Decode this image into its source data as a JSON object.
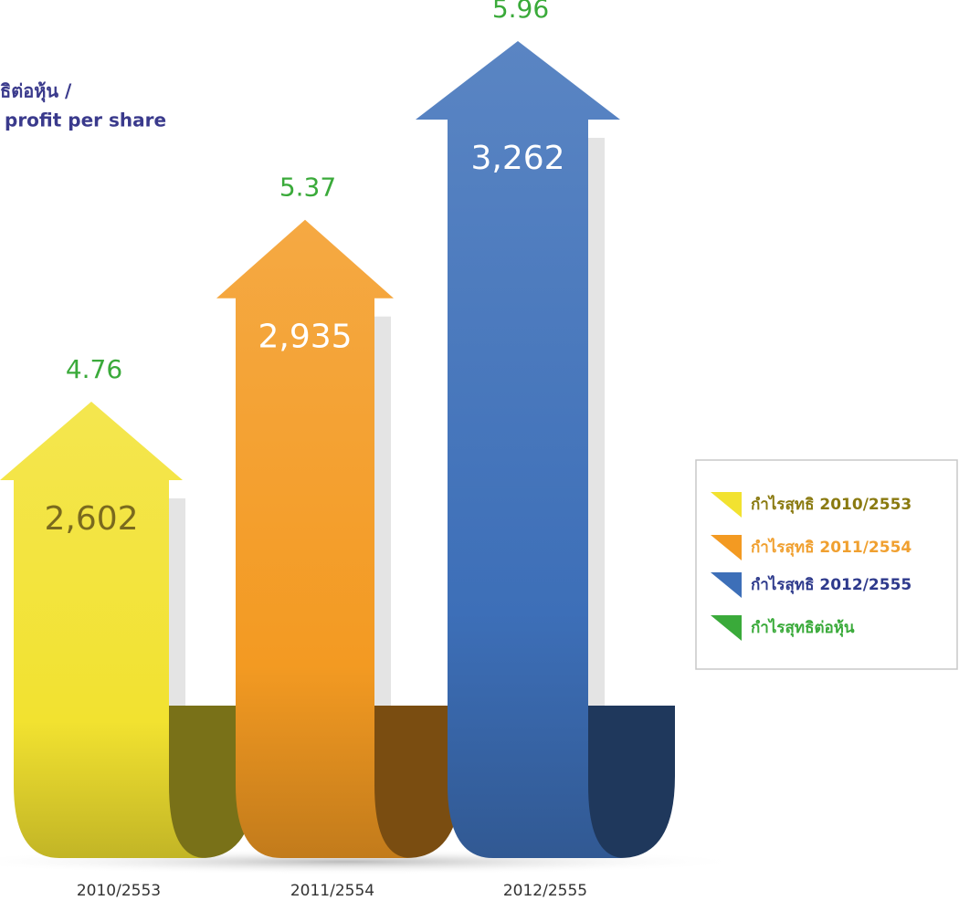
{
  "chart_data": {
    "type": "arrow-bar",
    "title": [
      "ธิต่อหุ้น /",
      "profit per share"
    ],
    "categories": [
      "2010/2553",
      "2011/2554",
      "2012/2555"
    ],
    "series": [
      {
        "name": "กำไรสุทธิ 2010/2553",
        "color": "#f2e230",
        "values": [
          2602,
          null,
          null
        ],
        "value_labels": [
          "2,602",
          null,
          null
        ]
      },
      {
        "name": "กำไรสุทธิ 2011/2554",
        "color": "#f39a22",
        "values": [
          null,
          2935,
          null
        ],
        "value_labels": [
          null,
          "2,935",
          null
        ]
      },
      {
        "name": "กำไรสุทธิ 2012/2555",
        "color": "#3d6fb8",
        "values": [
          null,
          null,
          3262
        ],
        "value_labels": [
          null,
          null,
          "3,262"
        ]
      },
      {
        "name": "กำไรสุทธิต่อหุ้น",
        "color": "#3aaa3a",
        "values": [
          4.76,
          5.37,
          5.96
        ]
      }
    ]
  }
}
